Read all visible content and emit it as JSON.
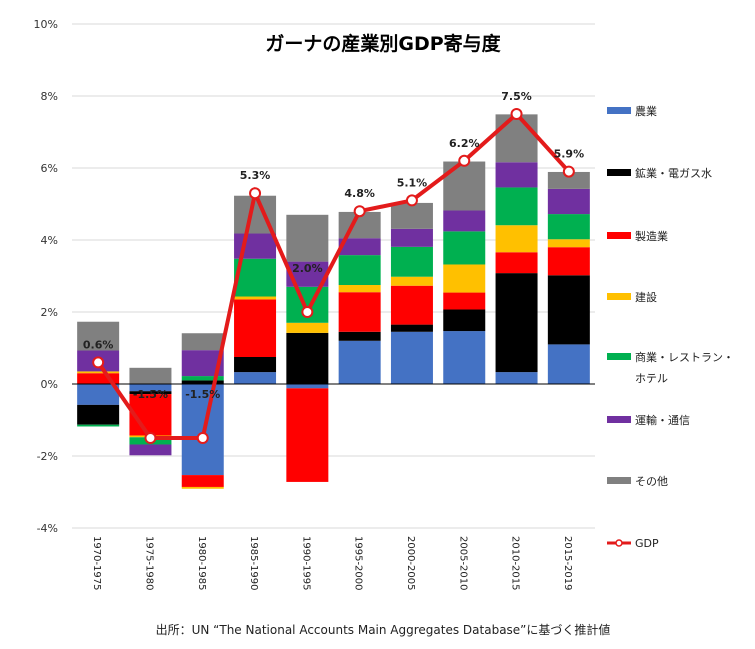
{
  "chart_data": {
    "type": "bar",
    "stacked": true,
    "title": "ガーナの産業別GDP寄与度",
    "source": "出所：UN “The National Accounts Main Aggregates Database”に基づく推計値",
    "categories": [
      "1970-1975",
      "1975-1980",
      "1980-1985",
      "1985-1990",
      "1990-1995",
      "1995-2000",
      "2000-2005",
      "2005-2010",
      "2010-2015",
      "2015-2019"
    ],
    "ylim": [
      -4,
      10
    ],
    "yticks": [
      "10%",
      "8%",
      "6%",
      "4%",
      "2%",
      "0%",
      "-2%",
      "-4%"
    ],
    "ytick_values": [
      10,
      8,
      6,
      4,
      2,
      0,
      -2,
      -4
    ],
    "grid": true,
    "legend_position": "right",
    "series": [
      {
        "name": "農業",
        "color": "#4472C4",
        "values": [
          -0.58,
          -0.2,
          -2.53,
          0.33,
          -0.12,
          1.2,
          1.45,
          1.47,
          0.33,
          1.1
        ]
      },
      {
        "name": "鉱業・電ガス水",
        "color": "#000000",
        "values": [
          -0.55,
          -0.08,
          0.1,
          0.42,
          1.42,
          0.25,
          0.2,
          0.6,
          2.75,
          1.92
        ]
      },
      {
        "name": "製造業",
        "color": "#FF0000",
        "values": [
          0.3,
          -1.15,
          -0.33,
          1.6,
          -2.6,
          1.1,
          1.08,
          0.47,
          0.58,
          0.78
        ]
      },
      {
        "name": "建設",
        "color": "#FFC000",
        "values": [
          0.05,
          -0.05,
          -0.05,
          0.08,
          0.28,
          0.2,
          0.25,
          0.78,
          0.75,
          0.22
        ]
      },
      {
        "name": "商業・レストラン・ホテル",
        "name_lines": [
          "商業・レストラン・",
          "ホテル"
        ],
        "color": "#00B050",
        "values": [
          -0.05,
          -0.2,
          0.12,
          1.05,
          1.0,
          0.83,
          0.83,
          0.92,
          1.05,
          0.7
        ]
      },
      {
        "name": "運輸・通信",
        "color": "#7030A0",
        "values": [
          0.58,
          -0.3,
          0.72,
          0.7,
          0.7,
          0.47,
          0.5,
          0.58,
          0.7,
          0.7
        ]
      },
      {
        "name": "その他",
        "color": "#808080",
        "values": [
          0.8,
          0.45,
          0.47,
          1.05,
          1.3,
          0.73,
          0.72,
          1.36,
          1.33,
          0.47
        ]
      }
    ],
    "line": {
      "name": "GDP",
      "color": "#E31B1B",
      "values": [
        0.6,
        -1.5,
        -1.5,
        5.3,
        2.0,
        4.8,
        5.1,
        6.2,
        7.5,
        5.9
      ],
      "labels": [
        "0.6%",
        "-1.5%",
        "-1.5%",
        "5.3%",
        "2.0%",
        "4.8%",
        "5.1%",
        "6.2%",
        "7.5%",
        "5.9%"
      ]
    }
  }
}
